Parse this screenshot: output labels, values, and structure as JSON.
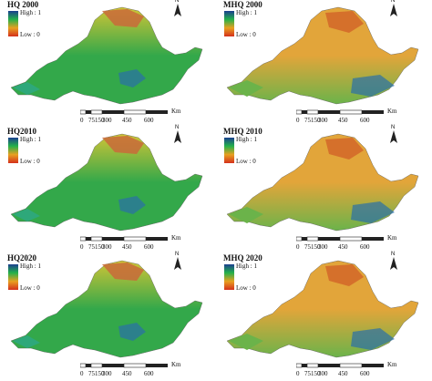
{
  "panels": [
    {
      "title": "HQ 2000",
      "legend_high": "High : 1",
      "legend_low": "Low : 0",
      "palette": "hq"
    },
    {
      "title": "MHQ 2000",
      "legend_high": "High : 1",
      "legend_low": "Low : 0",
      "palette": "mhq"
    },
    {
      "title": "HQ2010",
      "legend_high": "High : 1",
      "legend_low": "Low : 0",
      "palette": "hq"
    },
    {
      "title": "MHQ 2010",
      "legend_high": "High : 1",
      "legend_low": "Low : 0",
      "palette": "mhq"
    },
    {
      "title": "HQ2020",
      "legend_high": "High : 1",
      "legend_low": "Low : 0",
      "palette": "hq"
    },
    {
      "title": "MHQ 2020",
      "legend_high": "High : 1",
      "legend_low": "Low : 0",
      "palette": "mhq"
    }
  ],
  "scalebar": {
    "ticks": [
      "0",
      "75150",
      "300",
      "450",
      "600"
    ],
    "unit": "Km"
  },
  "north_label": "N",
  "colors": {
    "legend_top": "#1a3f8f",
    "legend_mid": "#23b14a",
    "legend_low": "#e8a020",
    "legend_bottom": "#d4301c",
    "hq_main": "#33a84a",
    "hq_north": "#d0c436",
    "hq_west": "#2ea87a",
    "mhq_main": "#e2a53a",
    "mhq_south": "#6bb34a",
    "mhq_lake": "#2a6fa8"
  }
}
